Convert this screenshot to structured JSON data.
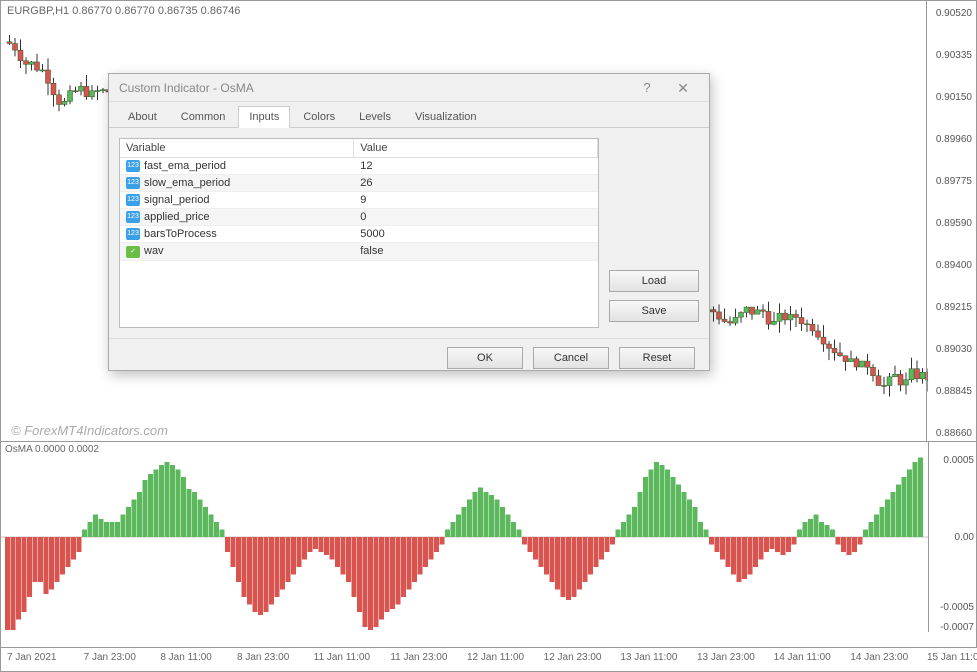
{
  "chart": {
    "pair_label": "EURGBP,H1  0.86770 0.86770 0.86735 0.86746",
    "watermark": "© ForexMT4Indicators.com",
    "price_axis": {
      "ticks": [
        "0.90520",
        "0.90335",
        "0.90150",
        "0.89960",
        "0.89775",
        "0.89590",
        "0.89400",
        "0.89215",
        "0.89030",
        "0.88845",
        "0.88660"
      ],
      "min": 0.8855,
      "max": 0.906
    },
    "candles": {
      "color_up": "#5cb85c",
      "color_down": "#d9534f",
      "note": "Decorative candlesticks approximated; values estimated from pixels"
    },
    "time_ticks": [
      "7 Jan 2021",
      "7 Jan 23:00",
      "8 Jan 11:00",
      "8 Jan 23:00",
      "11 Jan 11:00",
      "11 Jan 23:00",
      "12 Jan 11:00",
      "12 Jan 23:00",
      "13 Jan 11:00",
      "13 Jan 23:00",
      "14 Jan 11:00",
      "14 Jan 23:00",
      "15 Jan 11:00"
    ]
  },
  "osma": {
    "label": "OsMA 0.0000 0.0002",
    "axis": {
      "ticks": [
        "0.0005",
        "0.00",
        "-0.0005",
        "-0.0007"
      ]
    },
    "color_up": "#5cb85c",
    "color_down": "#d9534f",
    "bars": [
      -0.00065,
      -0.00065,
      -0.00055,
      -0.0005,
      -0.0004,
      -0.0003,
      -0.0003,
      -0.00038,
      -0.00035,
      -0.0003,
      -0.00025,
      -0.0002,
      -0.00015,
      -0.0001,
      5e-05,
      0.0001,
      0.00015,
      0.00012,
      0.0001,
      0.0001,
      0.0001,
      0.00015,
      0.0002,
      0.00025,
      0.0003,
      0.00038,
      0.00042,
      0.00045,
      0.00048,
      0.0005,
      0.00048,
      0.00045,
      0.0004,
      0.00032,
      0.0003,
      0.00025,
      0.0002,
      0.00015,
      0.0001,
      5e-05,
      -0.0001,
      -0.0002,
      -0.0003,
      -0.0004,
      -0.00045,
      -0.0005,
      -0.00052,
      -0.0005,
      -0.00045,
      -0.0004,
      -0.00035,
      -0.0003,
      -0.00025,
      -0.0002,
      -0.00015,
      -0.0001,
      -8e-05,
      -0.0001,
      -0.00012,
      -0.00015,
      -0.0002,
      -0.00025,
      -0.0003,
      -0.0004,
      -0.0005,
      -0.0006,
      -0.00062,
      -0.0006,
      -0.00055,
      -0.0005,
      -0.00048,
      -0.00045,
      -0.0004,
      -0.00035,
      -0.0003,
      -0.00025,
      -0.0002,
      -0.00015,
      -0.0001,
      -5e-05,
      5e-05,
      0.0001,
      0.00015,
      0.0002,
      0.00025,
      0.0003,
      0.00033,
      0.0003,
      0.00028,
      0.00025,
      0.0002,
      0.00015,
      0.0001,
      5e-05,
      -5e-05,
      -0.0001,
      -0.00015,
      -0.0002,
      -0.00025,
      -0.0003,
      -0.00035,
      -0.0004,
      -0.00042,
      -0.0004,
      -0.00035,
      -0.0003,
      -0.00025,
      -0.0002,
      -0.00015,
      -0.0001,
      -5e-05,
      5e-05,
      0.0001,
      0.00015,
      0.0002,
      0.0003,
      0.0004,
      0.00045,
      0.0005,
      0.00048,
      0.00045,
      0.0004,
      0.00035,
      0.0003,
      0.00025,
      0.0002,
      0.0001,
      5e-05,
      -5e-05,
      -0.0001,
      -0.00015,
      -0.0002,
      -0.00025,
      -0.0003,
      -0.00028,
      -0.00025,
      -0.0002,
      -0.00015,
      -0.0001,
      -8e-05,
      -0.0001,
      -0.00012,
      -0.0001,
      -5e-05,
      5e-05,
      0.0001,
      0.00012,
      0.00015,
      0.0001,
      8e-05,
      5e-05,
      -5e-05,
      -0.0001,
      -0.00012,
      -0.0001,
      -5e-05,
      5e-05,
      0.0001,
      0.00015,
      0.0002,
      0.00025,
      0.0003,
      0.00035,
      0.0004,
      0.00045,
      0.0005,
      0.00053
    ]
  },
  "dialog": {
    "title": "Custom Indicator - OsMA",
    "tabs": [
      "About",
      "Common",
      "Inputs",
      "Colors",
      "Levels",
      "Visualization"
    ],
    "active_tab": "Inputs",
    "table": {
      "col_var": "Variable",
      "col_val": "Value",
      "rows": [
        {
          "icon": "123",
          "name": "fast_ema_period",
          "value": "12"
        },
        {
          "icon": "123",
          "name": "slow_ema_period",
          "value": "26"
        },
        {
          "icon": "123",
          "name": "signal_period",
          "value": "9"
        },
        {
          "icon": "123",
          "name": "applied_price",
          "value": "0"
        },
        {
          "icon": "123",
          "name": "barsToProcess",
          "value": "5000"
        },
        {
          "icon": "bool",
          "name": "wav",
          "value": "false"
        }
      ]
    },
    "btn_load": "Load",
    "btn_save": "Save",
    "btn_ok": "OK",
    "btn_cancel": "Cancel",
    "btn_reset": "Reset"
  }
}
